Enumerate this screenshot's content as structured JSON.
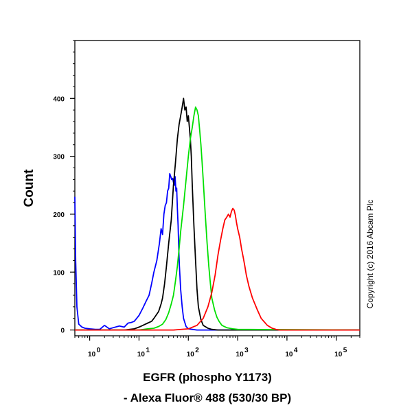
{
  "chart_data": {
    "type": "line",
    "title": "",
    "xlabel_lines": [
      "EGFR (phospho Y1173)",
      "- Alexa Fluor® 488 (530/30 BP)"
    ],
    "ylabel": "Count",
    "x_scale": "log",
    "xlim": [
      0.5,
      300000
    ],
    "ylim": [
      -10,
      500
    ],
    "x_ticks": [
      {
        "value": 1,
        "base": "10",
        "exp": "0"
      },
      {
        "value": 10,
        "base": "10",
        "exp": "1"
      },
      {
        "value": 100,
        "base": "10",
        "exp": "2"
      },
      {
        "value": 1000,
        "base": "10",
        "exp": "3"
      },
      {
        "value": 10000,
        "base": "10",
        "exp": "4"
      },
      {
        "value": 100000,
        "base": "10",
        "exp": "5"
      }
    ],
    "y_ticks": [
      0,
      100,
      200,
      300,
      400
    ],
    "grid": false,
    "annotation": "Copyright (c) 2016 Abcam Plc",
    "series": [
      {
        "color": "#0000ff",
        "x": [
          0.5,
          0.52,
          0.55,
          0.6,
          0.7,
          0.8,
          1.0,
          1.3,
          1.6,
          2.0,
          2.5,
          3.0,
          4.0,
          5.0,
          6.0,
          7.0,
          8.0,
          10,
          12,
          14,
          16,
          18,
          20,
          23,
          26,
          28,
          30,
          32,
          34,
          36,
          38,
          40,
          42,
          44,
          46,
          48,
          50,
          52,
          54,
          56,
          58,
          60,
          62,
          64,
          66,
          70,
          75,
          80,
          90,
          100,
          120,
          150,
          200,
          300000
        ],
        "y": [
          230,
          120,
          40,
          10,
          5,
          3,
          2,
          1,
          1,
          8,
          2,
          4,
          7,
          5,
          12,
          13,
          15,
          25,
          38,
          50,
          60,
          80,
          100,
          120,
          150,
          175,
          165,
          200,
          215,
          220,
          240,
          245,
          270,
          265,
          260,
          262,
          255,
          250,
          265,
          240,
          245,
          210,
          180,
          140,
          110,
          70,
          40,
          20,
          6,
          2,
          1,
          0,
          0,
          0
        ]
      },
      {
        "color": "#000000",
        "x": [
          0.5,
          1,
          5,
          8,
          10,
          12,
          15,
          18,
          20,
          22,
          25,
          28,
          30,
          33,
          36,
          40,
          45,
          50,
          55,
          60,
          65,
          70,
          75,
          80,
          85,
          90,
          95,
          100,
          105,
          110,
          115,
          120,
          130,
          140,
          150,
          160,
          180,
          200,
          250,
          300,
          400,
          300000
        ],
        "y": [
          0,
          0,
          0,
          2,
          5,
          8,
          12,
          15,
          20,
          25,
          32,
          45,
          55,
          80,
          110,
          150,
          190,
          250,
          290,
          330,
          355,
          370,
          385,
          400,
          380,
          385,
          360,
          370,
          350,
          330,
          300,
          250,
          180,
          120,
          70,
          40,
          18,
          8,
          3,
          1,
          0,
          0
        ]
      },
      {
        "color": "#00e000",
        "x": [
          0.5,
          1,
          10,
          15,
          20,
          25,
          30,
          35,
          40,
          45,
          50,
          55,
          60,
          65,
          70,
          80,
          90,
          100,
          110,
          120,
          130,
          140,
          150,
          160,
          170,
          180,
          190,
          200,
          220,
          240,
          260,
          280,
          300,
          340,
          380,
          420,
          480,
          600,
          800,
          1000,
          300000
        ],
        "y": [
          0,
          0,
          0,
          2,
          3,
          6,
          10,
          18,
          30,
          45,
          60,
          85,
          110,
          140,
          170,
          215,
          260,
          300,
          330,
          350,
          370,
          385,
          380,
          370,
          345,
          320,
          290,
          260,
          200,
          150,
          110,
          80,
          55,
          35,
          22,
          15,
          8,
          4,
          2,
          1,
          0
        ]
      },
      {
        "color": "#ff0000",
        "x": [
          0.5,
          1,
          50,
          100,
          150,
          200,
          250,
          300,
          350,
          400,
          450,
          500,
          550,
          600,
          650,
          700,
          750,
          800,
          850,
          900,
          950,
          1000,
          1100,
          1200,
          1300,
          1400,
          1500,
          1700,
          2000,
          2500,
          3000,
          4000,
          5000,
          6000,
          7000,
          300000
        ],
        "y": [
          0,
          0,
          0,
          2,
          8,
          20,
          40,
          65,
          95,
          130,
          155,
          175,
          190,
          195,
          200,
          195,
          205,
          210,
          207,
          198,
          185,
          175,
          160,
          140,
          125,
          110,
          95,
          75,
          55,
          35,
          20,
          8,
          3,
          1,
          0,
          0
        ]
      }
    ]
  }
}
